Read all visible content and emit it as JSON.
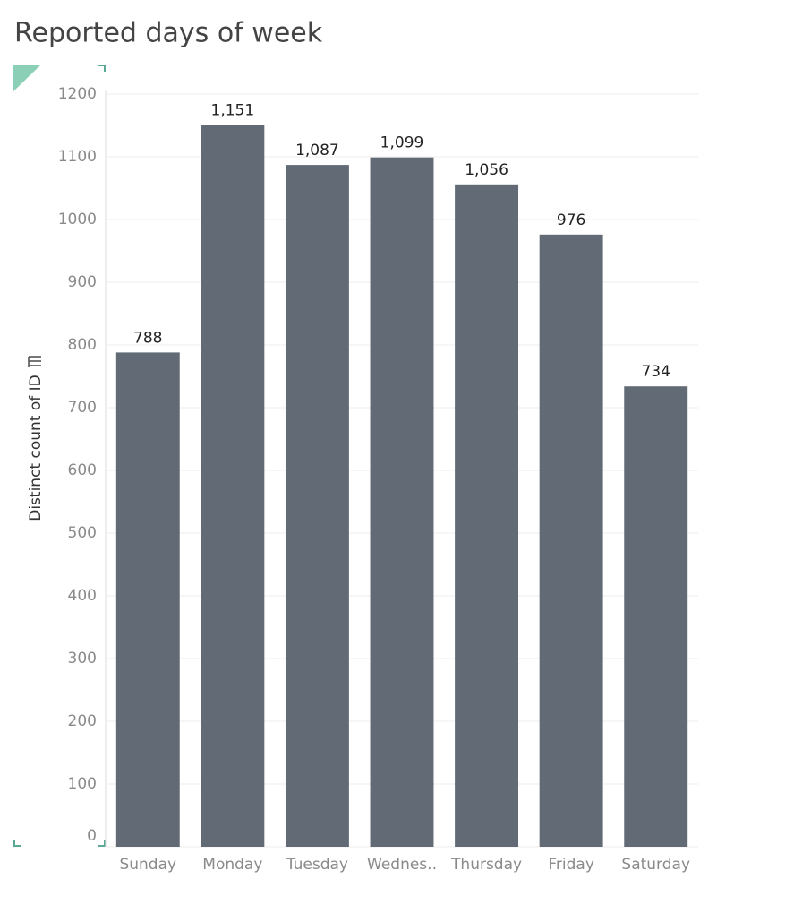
{
  "chart_data": {
    "type": "bar",
    "title": "Reported days of week",
    "y_label": "Distinct count of ID",
    "categories": [
      "Sunday",
      "Monday",
      "Tuesday",
      "Wednes..",
      "Thursday",
      "Friday",
      "Saturday"
    ],
    "values": [
      788,
      1151,
      1087,
      1099,
      1056,
      976,
      734
    ],
    "value_labels": [
      "788",
      "1,151",
      "1,087",
      "1,099",
      "1,056",
      "976",
      "734"
    ],
    "color": "#626b75",
    "ylim": [
      0,
      1200
    ],
    "yticks": [
      0,
      100,
      200,
      300,
      400,
      500,
      600,
      700,
      800,
      900,
      1000,
      1100,
      1200
    ],
    "grid": true
  }
}
